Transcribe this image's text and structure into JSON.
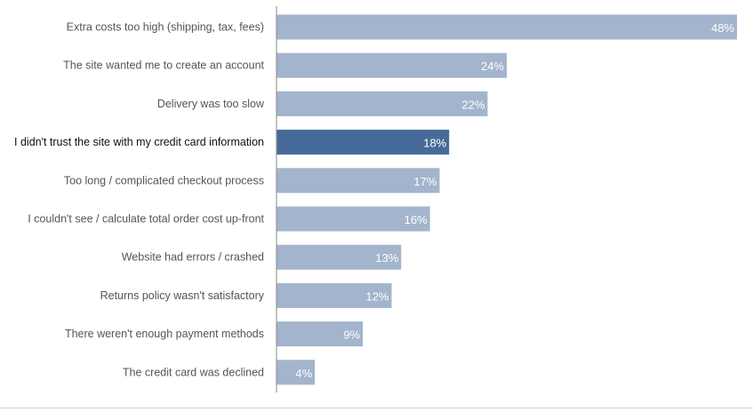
{
  "chart_data": {
    "type": "bar",
    "orientation": "horizontal",
    "title": "",
    "xlabel": "",
    "ylabel": "",
    "xlim": [
      0,
      48
    ],
    "grid": false,
    "legend": "none",
    "categories": [
      "Extra costs too high (shipping, tax, fees)",
      "The site wanted me to create an account",
      "Delivery was too slow",
      "I didn't trust the site with my credit card information",
      "Too long / complicated checkout process",
      "I couldn't see / calculate total order cost up-front",
      "Website had errors / crashed",
      "Returns policy wasn't satisfactory",
      "There weren't enough payment methods",
      "The credit card was declined"
    ],
    "values": [
      48,
      24,
      22,
      18,
      17,
      16,
      13,
      12,
      9,
      4
    ],
    "value_labels": [
      "48%",
      "24%",
      "22%",
      "18%",
      "17%",
      "16%",
      "13%",
      "12%",
      "9%",
      "4%"
    ],
    "highlight_index": 3,
    "colors": {
      "bar": "#a3b4cd",
      "bar_highlight": "#466b98",
      "axis": "#8a8a8a",
      "label": "#555555",
      "label_highlight": "#111111",
      "value_text": "#ffffff"
    }
  }
}
